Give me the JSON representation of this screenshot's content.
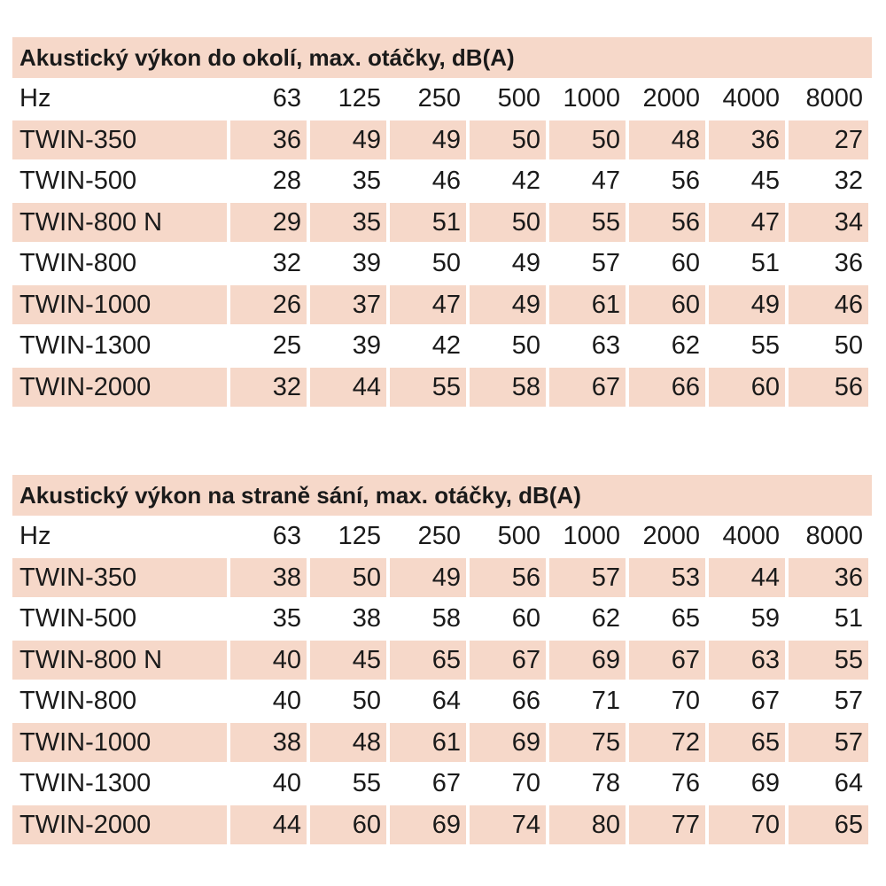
{
  "frequencies": [
    "63",
    "125",
    "250",
    "500",
    "1000",
    "2000",
    "4000",
    "8000"
  ],
  "tables": [
    {
      "title": "Akustický výkon do okolí, max. otáčky, dB(A)",
      "header_label": "Hz",
      "rows": [
        {
          "model": "TWIN-350",
          "values": [
            "36",
            "49",
            "49",
            "50",
            "50",
            "48",
            "36",
            "27"
          ]
        },
        {
          "model": "TWIN-500",
          "values": [
            "28",
            "35",
            "46",
            "42",
            "47",
            "56",
            "45",
            "32"
          ]
        },
        {
          "model": "TWIN-800 N",
          "values": [
            "29",
            "35",
            "51",
            "50",
            "55",
            "56",
            "47",
            "34"
          ]
        },
        {
          "model": "TWIN-800",
          "values": [
            "32",
            "39",
            "50",
            "49",
            "57",
            "60",
            "51",
            "36"
          ]
        },
        {
          "model": "TWIN-1000",
          "values": [
            "26",
            "37",
            "47",
            "49",
            "61",
            "60",
            "49",
            "46"
          ]
        },
        {
          "model": "TWIN-1300",
          "values": [
            "25",
            "39",
            "42",
            "50",
            "63",
            "62",
            "55",
            "50"
          ]
        },
        {
          "model": "TWIN-2000",
          "values": [
            "32",
            "44",
            "55",
            "58",
            "67",
            "66",
            "60",
            "56"
          ]
        }
      ]
    },
    {
      "title": "Akustický výkon na straně sání, max. otáčky, dB(A)",
      "header_label": "Hz",
      "rows": [
        {
          "model": "TWIN-350",
          "values": [
            "38",
            "50",
            "49",
            "56",
            "57",
            "53",
            "44",
            "36"
          ]
        },
        {
          "model": "TWIN-500",
          "values": [
            "35",
            "38",
            "58",
            "60",
            "62",
            "65",
            "59",
            "51"
          ]
        },
        {
          "model": "TWIN-800 N",
          "values": [
            "40",
            "45",
            "65",
            "67",
            "69",
            "67",
            "63",
            "55"
          ]
        },
        {
          "model": "TWIN-800",
          "values": [
            "40",
            "50",
            "64",
            "66",
            "71",
            "70",
            "67",
            "57"
          ]
        },
        {
          "model": "TWIN-1000",
          "values": [
            "38",
            "48",
            "61",
            "69",
            "75",
            "72",
            "65",
            "57"
          ]
        },
        {
          "model": "TWIN-1300",
          "values": [
            "40",
            "55",
            "67",
            "70",
            "78",
            "76",
            "69",
            "64"
          ]
        },
        {
          "model": "TWIN-2000",
          "values": [
            "44",
            "60",
            "69",
            "74",
            "80",
            "77",
            "70",
            "65"
          ]
        }
      ]
    }
  ]
}
